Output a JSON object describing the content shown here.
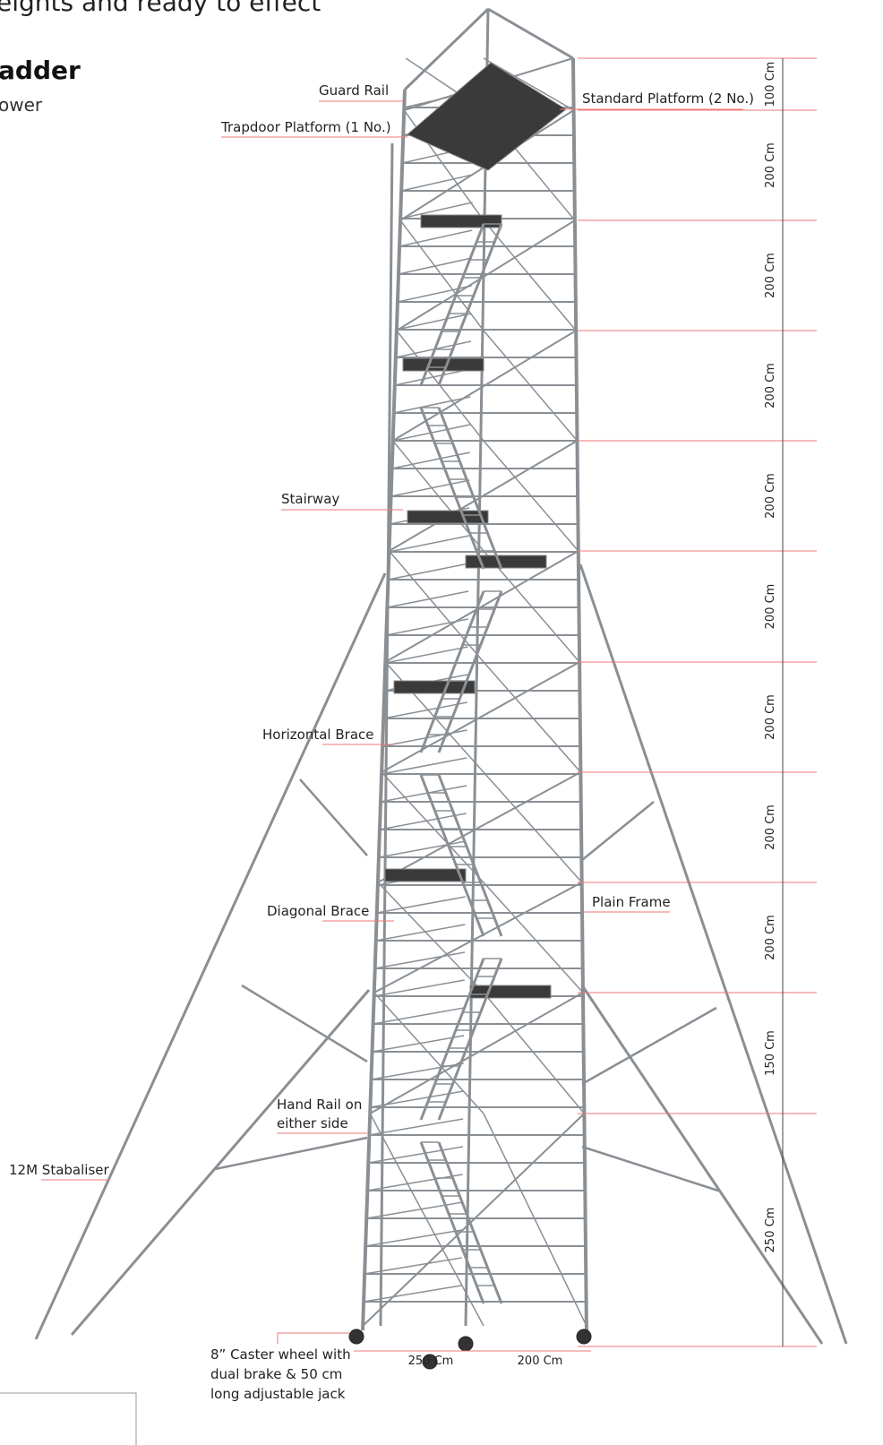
{
  "header": {
    "tagline": "eights and ready to effect",
    "title": "adder",
    "subtitle": "ower"
  },
  "labels": {
    "guard_rail": "Guard Rail",
    "trapdoor_platform": "Trapdoor Platform (1 No.)",
    "standard_platform": "Standard Platform (2 No.)",
    "stairway": "Stairway",
    "horizontal_brace": "Horizontal Brace",
    "diagonal_brace": "Diagonal Brace",
    "plain_frame": "Plain Frame",
    "hand_rail": [
      "Hand Rail on",
      "either side"
    ],
    "stabaliser": "12M Stabaliser",
    "caster": [
      "8” Caster wheel with",
      "dual brake & 50 cm",
      "long adjustable jack"
    ]
  },
  "heights": [
    "100 Cm",
    "200 Cm",
    "200 Cm",
    "200 Cm",
    "200 Cm",
    "200 Cm",
    "200 Cm",
    "200 Cm",
    "200 Cm",
    "150 Cm",
    "250 Cm"
  ],
  "base": {
    "length": "250 Cm",
    "width": "200 Cm"
  }
}
